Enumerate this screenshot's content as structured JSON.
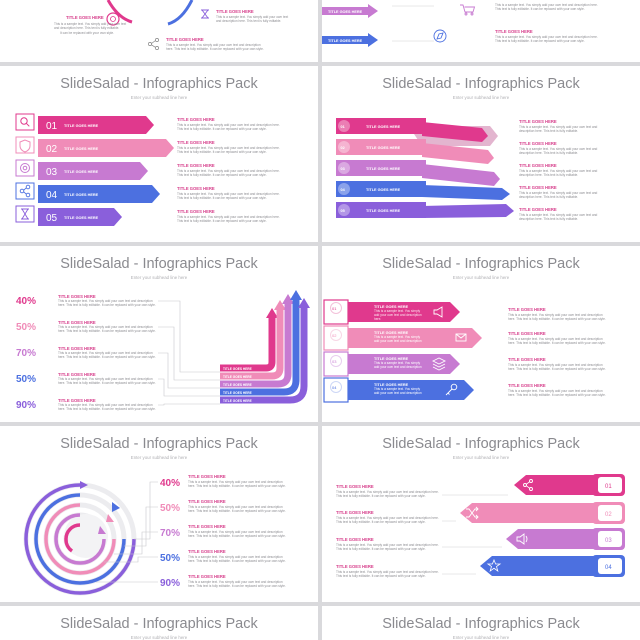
{
  "header": {
    "title": "SlideSalad - Infographics Pack",
    "subtitle": "Enter your subhead line here"
  },
  "item_title": "TITLE GOES HERE",
  "item_text": "This is a sample text. You simply add your own text and description here. This text is fully editable. It can be replaced with your own style.",
  "numbers": [
    "01",
    "02",
    "03",
    "04",
    "05"
  ],
  "percentages": [
    "40%",
    "50%",
    "70%",
    "50%",
    "90%"
  ],
  "colors": {
    "magenta": "#e0398d",
    "pink": "#f08cb8",
    "orchid": "#c77ad1",
    "blue": "#4c70e0",
    "violet": "#8a5fdb"
  },
  "icons": [
    "search-icon",
    "shield-icon",
    "target-icon",
    "network-icon",
    "hourglass-icon",
    "megaphone-icon",
    "mail-icon",
    "layers-icon",
    "key-icon",
    "share-icon",
    "shuffle-icon",
    "volume-icon",
    "star-icon",
    "cart-icon",
    "compass-icon"
  ]
}
